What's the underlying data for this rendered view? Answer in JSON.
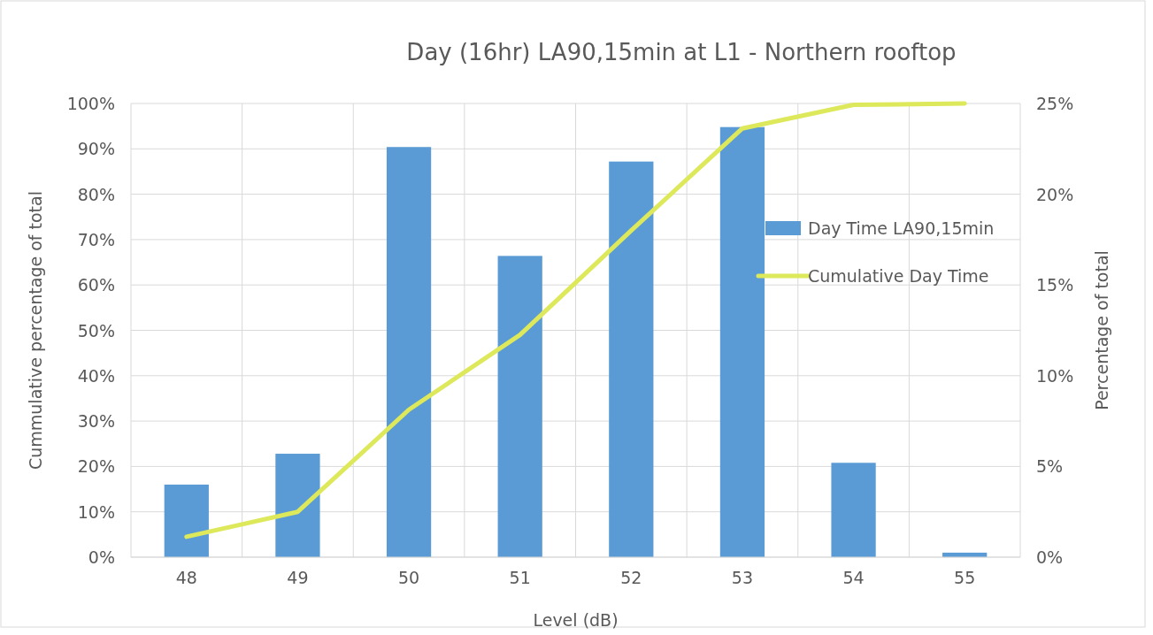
{
  "chart_data": {
    "type": "bar",
    "title": "Day (16hr) LA90,15min at L1 - Northern rooftop",
    "xlabel": "Level (dB)",
    "ylabel": "Cummulative percentage of total",
    "y2label": "Percentage of total",
    "categories": [
      "48",
      "49",
      "50",
      "51",
      "52",
      "53",
      "54",
      "55"
    ],
    "series": [
      {
        "name": "Day Time LA90,15min",
        "axis": "y2",
        "color": "#5b9bd5",
        "values": [
          4.0,
          5.7,
          22.6,
          16.6,
          21.8,
          23.7,
          5.2,
          0.25
        ]
      },
      {
        "name": "Cumulative Day Time",
        "type": "line",
        "color": "#dde85a",
        "values": [
          4.5,
          10,
          32.5,
          49,
          72,
          94.5,
          99.7,
          100
        ]
      }
    ],
    "ylim": [
      0,
      100
    ],
    "yticks": [
      {
        "value": 0,
        "label": "0%"
      },
      {
        "value": 10,
        "label": "10%"
      },
      {
        "value": 20,
        "label": "20%"
      },
      {
        "value": 30,
        "label": "30%"
      },
      {
        "value": 40,
        "label": "40%"
      },
      {
        "value": 50,
        "label": "50%"
      },
      {
        "value": 60,
        "label": "60%"
      },
      {
        "value": 70,
        "label": "70%"
      },
      {
        "value": 80,
        "label": "80%"
      },
      {
        "value": 90,
        "label": "90%"
      },
      {
        "value": 100,
        "label": "100%"
      }
    ],
    "y2lim": [
      0,
      25
    ],
    "y2ticks": [
      {
        "value": 0,
        "label": "0%"
      },
      {
        "value": 5,
        "label": "5%"
      },
      {
        "value": 10,
        "label": "10%"
      },
      {
        "value": 15,
        "label": "15%"
      },
      {
        "value": 20,
        "label": "20%"
      },
      {
        "value": 25,
        "label": "25%"
      }
    ],
    "grid": true,
    "legend": "right",
    "marker": "none",
    "line_style": "solid"
  }
}
